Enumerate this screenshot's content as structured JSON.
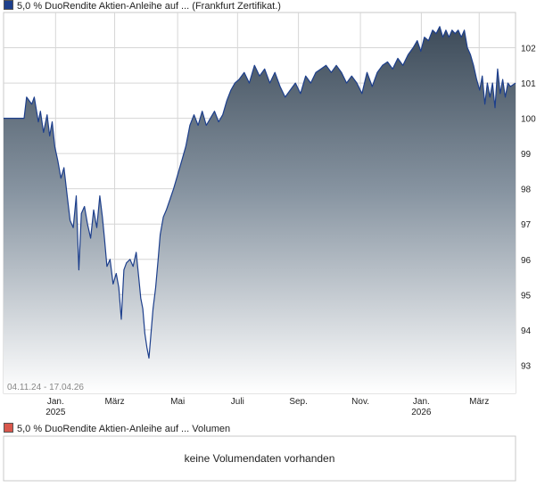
{
  "legend": {
    "main_label": "5,0 % DuoRendite Aktien-Anleihe auf ... (Frankfurt Zertifikat.)",
    "main_color": "#1d3f8c",
    "volume_label": "5,0 % DuoRendite Aktien-Anleihe auf ... Volumen",
    "volume_color": "#d9574c"
  },
  "date_range": "04.11.24 - 17.04.26",
  "volume_panel": {
    "message": "keine Volumendaten vorhanden"
  },
  "chart_data": {
    "type": "area",
    "title": "",
    "xlabel": "",
    "ylabel": "",
    "ylim": [
      92.2,
      103.0
    ],
    "yticks": [
      93,
      94,
      95,
      96,
      97,
      98,
      99,
      100,
      101,
      102
    ],
    "xticks": [
      {
        "label": "Jan.",
        "sub": "2025",
        "pos": 0.1016
      },
      {
        "label": "März",
        "sub": "",
        "pos": 0.217
      },
      {
        "label": "Mai",
        "sub": "",
        "pos": 0.34
      },
      {
        "label": "Juli",
        "sub": "",
        "pos": 0.457
      },
      {
        "label": "Sep.",
        "sub": "",
        "pos": 0.576
      },
      {
        "label": "Nov.",
        "sub": "",
        "pos": 0.697
      },
      {
        "label": "Jan.",
        "sub": "2026",
        "pos": 0.816
      },
      {
        "label": "März",
        "sub": "",
        "pos": 0.929
      }
    ],
    "grid": true,
    "series": [
      {
        "name": "5,0 % DuoRendite Aktien-Anleihe auf ... (Frankfurt Zertifikat.)",
        "color": "#1d3f8c",
        "points": [
          [
            0.0,
            100.0
          ],
          [
            0.04,
            100.0
          ],
          [
            0.045,
            100.6
          ],
          [
            0.055,
            100.4
          ],
          [
            0.06,
            100.6
          ],
          [
            0.068,
            99.9
          ],
          [
            0.072,
            100.2
          ],
          [
            0.078,
            99.6
          ],
          [
            0.085,
            100.1
          ],
          [
            0.09,
            99.5
          ],
          [
            0.095,
            99.9
          ],
          [
            0.1,
            99.2
          ],
          [
            0.106,
            98.8
          ],
          [
            0.112,
            98.3
          ],
          [
            0.118,
            98.6
          ],
          [
            0.125,
            97.7
          ],
          [
            0.13,
            97.1
          ],
          [
            0.136,
            96.9
          ],
          [
            0.142,
            97.8
          ],
          [
            0.147,
            95.7
          ],
          [
            0.152,
            97.3
          ],
          [
            0.158,
            97.5
          ],
          [
            0.164,
            97.0
          ],
          [
            0.17,
            96.6
          ],
          [
            0.176,
            97.4
          ],
          [
            0.182,
            96.9
          ],
          [
            0.188,
            97.8
          ],
          [
            0.193,
            97.2
          ],
          [
            0.197,
            96.6
          ],
          [
            0.202,
            95.8
          ],
          [
            0.208,
            96.0
          ],
          [
            0.214,
            95.3
          ],
          [
            0.22,
            95.6
          ],
          [
            0.225,
            95.2
          ],
          [
            0.23,
            94.3
          ],
          [
            0.235,
            95.7
          ],
          [
            0.24,
            95.9
          ],
          [
            0.247,
            96.0
          ],
          [
            0.253,
            95.8
          ],
          [
            0.259,
            96.2
          ],
          [
            0.264,
            95.5
          ],
          [
            0.268,
            94.9
          ],
          [
            0.272,
            94.6
          ],
          [
            0.276,
            93.9
          ],
          [
            0.28,
            93.5
          ],
          [
            0.284,
            93.2
          ],
          [
            0.288,
            93.9
          ],
          [
            0.292,
            94.6
          ],
          [
            0.297,
            95.2
          ],
          [
            0.302,
            96.0
          ],
          [
            0.306,
            96.7
          ],
          [
            0.312,
            97.2
          ],
          [
            0.318,
            97.4
          ],
          [
            0.325,
            97.7
          ],
          [
            0.332,
            98.0
          ],
          [
            0.34,
            98.4
          ],
          [
            0.348,
            98.8
          ],
          [
            0.356,
            99.2
          ],
          [
            0.364,
            99.8
          ],
          [
            0.372,
            100.1
          ],
          [
            0.38,
            99.8
          ],
          [
            0.388,
            100.2
          ],
          [
            0.396,
            99.8
          ],
          [
            0.404,
            100.0
          ],
          [
            0.412,
            100.2
          ],
          [
            0.42,
            99.9
          ],
          [
            0.428,
            100.1
          ],
          [
            0.436,
            100.5
          ],
          [
            0.444,
            100.8
          ],
          [
            0.452,
            101.0
          ],
          [
            0.46,
            101.1
          ],
          [
            0.47,
            101.3
          ],
          [
            0.48,
            101.0
          ],
          [
            0.49,
            101.5
          ],
          [
            0.5,
            101.2
          ],
          [
            0.51,
            101.4
          ],
          [
            0.52,
            101.0
          ],
          [
            0.53,
            101.3
          ],
          [
            0.54,
            100.9
          ],
          [
            0.55,
            100.6
          ],
          [
            0.56,
            100.8
          ],
          [
            0.57,
            101.0
          ],
          [
            0.58,
            100.7
          ],
          [
            0.59,
            101.2
          ],
          [
            0.6,
            101.0
          ],
          [
            0.61,
            101.3
          ],
          [
            0.62,
            101.4
          ],
          [
            0.63,
            101.5
          ],
          [
            0.64,
            101.3
          ],
          [
            0.65,
            101.5
          ],
          [
            0.66,
            101.3
          ],
          [
            0.67,
            101.0
          ],
          [
            0.68,
            101.2
          ],
          [
            0.69,
            101.0
          ],
          [
            0.7,
            100.7
          ],
          [
            0.71,
            101.3
          ],
          [
            0.72,
            100.9
          ],
          [
            0.73,
            101.3
          ],
          [
            0.74,
            101.5
          ],
          [
            0.75,
            101.6
          ],
          [
            0.76,
            101.4
          ],
          [
            0.77,
            101.7
          ],
          [
            0.78,
            101.5
          ],
          [
            0.79,
            101.8
          ],
          [
            0.8,
            102.0
          ],
          [
            0.808,
            102.2
          ],
          [
            0.815,
            101.9
          ],
          [
            0.822,
            102.3
          ],
          [
            0.83,
            102.2
          ],
          [
            0.838,
            102.5
          ],
          [
            0.845,
            102.4
          ],
          [
            0.852,
            102.6
          ],
          [
            0.858,
            102.3
          ],
          [
            0.864,
            102.5
          ],
          [
            0.87,
            102.3
          ],
          [
            0.876,
            102.5
          ],
          [
            0.882,
            102.4
          ],
          [
            0.888,
            102.5
          ],
          [
            0.894,
            102.3
          ],
          [
            0.9,
            102.5
          ],
          [
            0.906,
            102.0
          ],
          [
            0.912,
            101.8
          ],
          [
            0.918,
            101.5
          ],
          [
            0.924,
            101.1
          ],
          [
            0.93,
            100.8
          ],
          [
            0.935,
            101.2
          ],
          [
            0.94,
            100.4
          ],
          [
            0.945,
            101.0
          ],
          [
            0.95,
            100.6
          ],
          [
            0.955,
            101.0
          ],
          [
            0.96,
            100.3
          ],
          [
            0.965,
            101.4
          ],
          [
            0.97,
            100.7
          ],
          [
            0.975,
            101.1
          ],
          [
            0.98,
            100.6
          ],
          [
            0.985,
            101.0
          ],
          [
            0.99,
            100.9
          ],
          [
            1.0,
            101.0
          ]
        ]
      }
    ]
  }
}
